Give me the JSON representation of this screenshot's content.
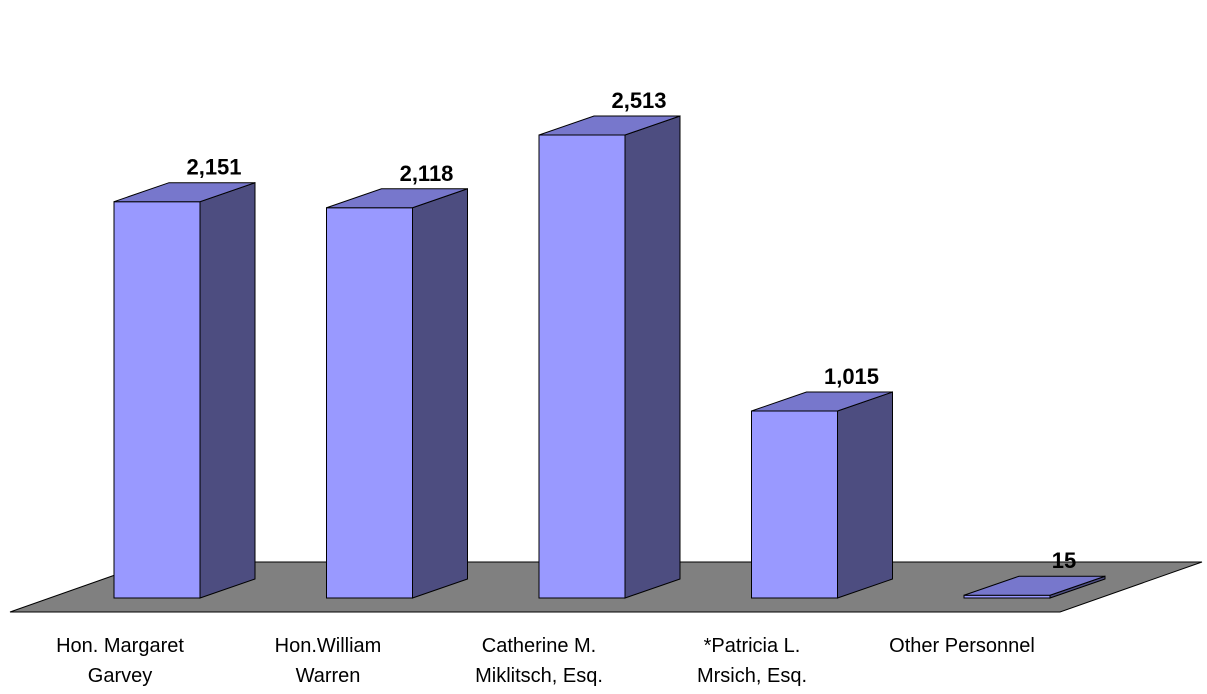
{
  "chart_data": {
    "type": "bar",
    "categories": [
      [
        "Hon. Margaret",
        "Garvey"
      ],
      [
        "Hon.William",
        "Warren"
      ],
      [
        "Catherine M.",
        "Miklitsch, Esq."
      ],
      [
        "*Patricia L.",
        "Mrsich, Esq."
      ],
      [
        "Other Personnel"
      ]
    ],
    "values": [
      2151,
      2118,
      2513,
      1015,
      15
    ],
    "value_labels": [
      "2,151",
      "2,118",
      "2,513",
      "1,015",
      "15"
    ],
    "title": "",
    "xlabel": "",
    "ylabel": "",
    "ylim": [
      0,
      2600
    ],
    "grid": false,
    "legend": "none",
    "three_d": true,
    "colors": {
      "front": "#9999ff",
      "side": "#4d4d80",
      "top": "#7777cc",
      "floor": "#808080",
      "outline": "#000000"
    }
  }
}
